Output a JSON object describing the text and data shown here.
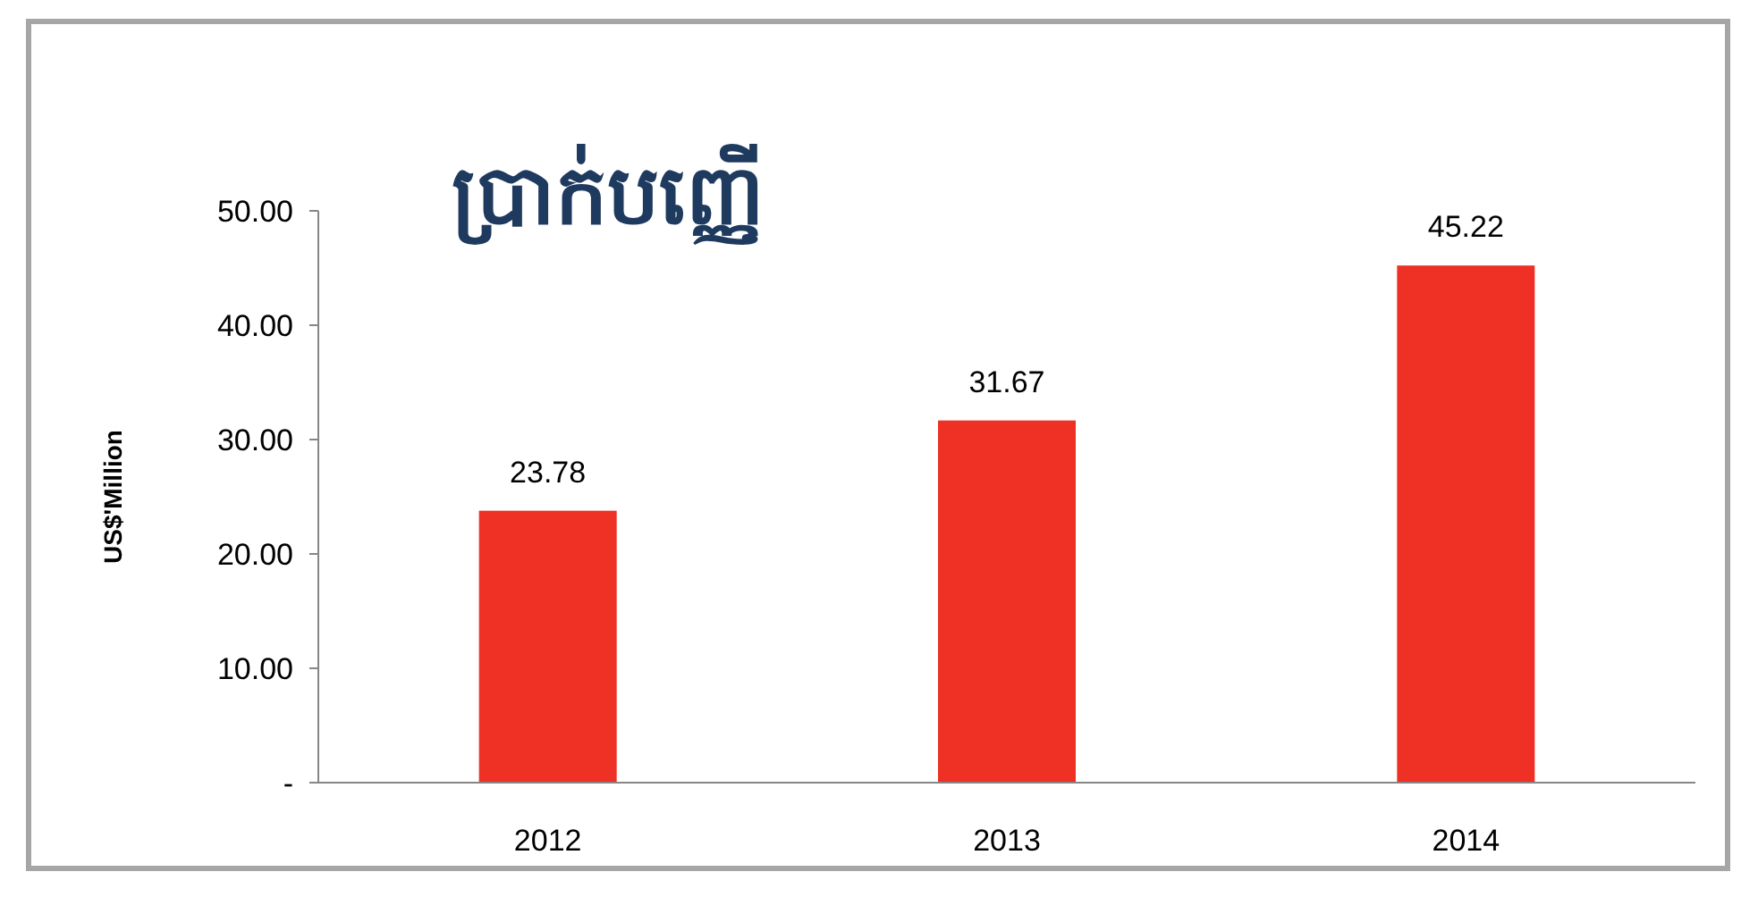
{
  "chart_data": {
    "type": "bar",
    "title": "ប្រាក់បញ្ញើ",
    "ylabel": "US$'Million",
    "categories": [
      "2012",
      "2013",
      "2014"
    ],
    "values": [
      23.78,
      31.67,
      45.22
    ],
    "color": "#ee3124",
    "data_labels": true,
    "ylim": [
      0,
      50
    ],
    "yticks": [
      {
        "value": 0,
        "label": "-"
      },
      {
        "value": 10,
        "label": "10.00"
      },
      {
        "value": 20,
        "label": "20.00"
      },
      {
        "value": 30,
        "label": "30.00"
      },
      {
        "value": 40,
        "label": "40.00"
      },
      {
        "value": 50,
        "label": "50.00"
      }
    ],
    "grid": false
  }
}
